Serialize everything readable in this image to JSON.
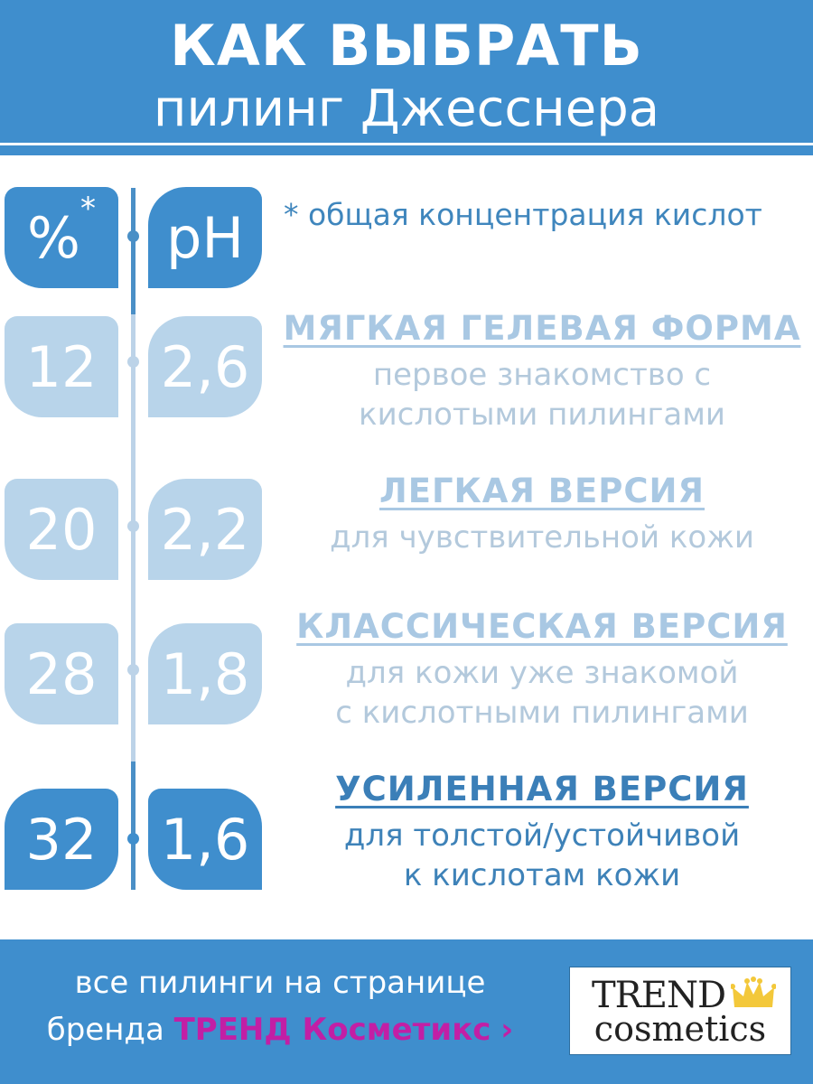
{
  "header": {
    "line1": "КАК ВЫБРАТЬ",
    "line2": "пилинг Джесснера"
  },
  "columns": {
    "percent": "%",
    "asterisk": "*",
    "ph": "pH"
  },
  "note": "* общая концентрация кислот",
  "rows": [
    {
      "percent": "12",
      "ph": "2,6",
      "title": "МЯГКАЯ ГЕЛЕВАЯ ФОРМА",
      "desc1": "первое знакомство с",
      "desc2": "кислотыми пилингами"
    },
    {
      "percent": "20",
      "ph": "2,2",
      "title": "ЛЕГКАЯ ВЕРСИЯ",
      "desc1": "для чувствительной кожи",
      "desc2": ""
    },
    {
      "percent": "28",
      "ph": "1,8",
      "title": "КЛАССИЧЕСКАЯ ВЕРСИЯ",
      "desc1": "для кожи уже знакомой",
      "desc2": "с кислотными пилингами"
    },
    {
      "percent": "32",
      "ph": "1,6",
      "title": "УСИЛЕННАЯ ВЕРСИЯ",
      "desc1": "для толстой/устойчивой",
      "desc2": "к кислотам кожи"
    }
  ],
  "footer": {
    "line1": "все пилинги на странице",
    "line2_prefix": "бренда ",
    "brand": "ТРЕНД Косметикс",
    "chevron": "›"
  },
  "logo": {
    "word1": "TREND",
    "word2": "cosmetics",
    "icon": "crown-icon"
  },
  "colors": {
    "primary": "#3f8ecd",
    "light": "#b8d4ea",
    "brand_link": "#c21fa5",
    "crown": "#f3c83a"
  }
}
